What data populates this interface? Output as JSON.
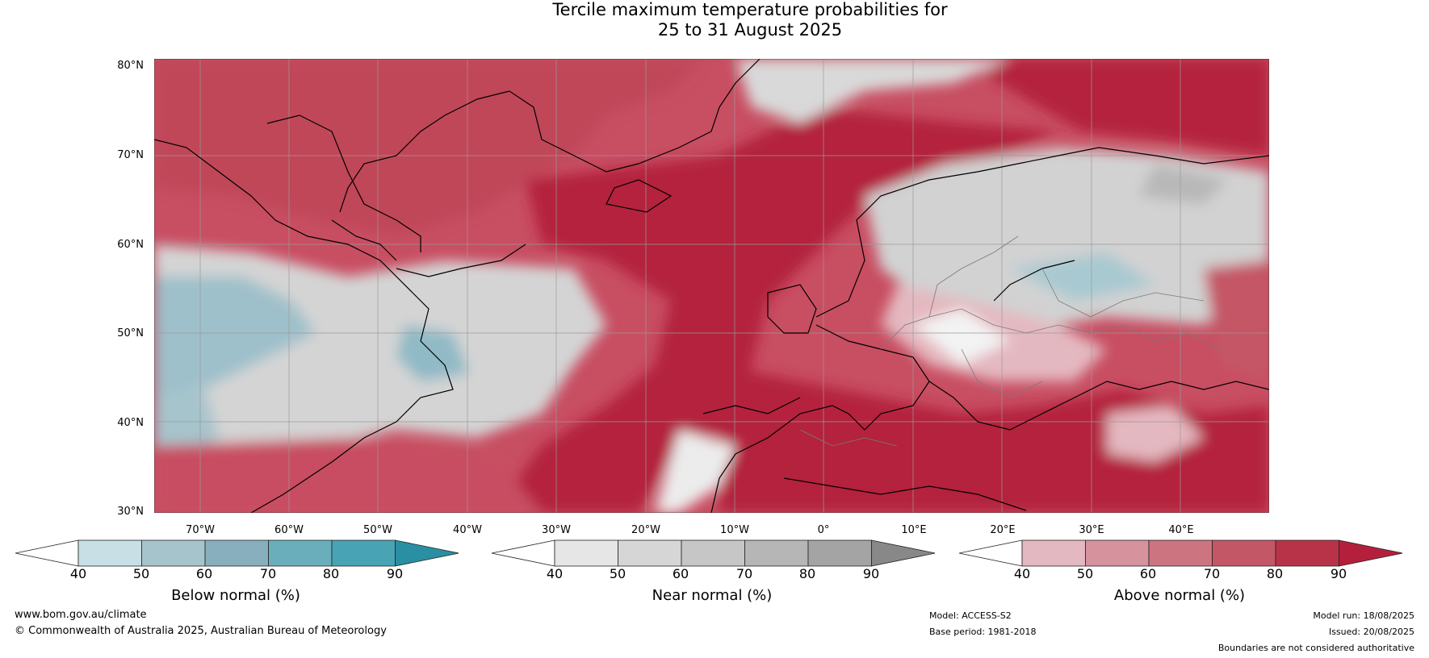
{
  "title": {
    "line1": "Tercile maximum temperature probabilities for",
    "line2": "25 to 31 August 2025"
  },
  "map": {
    "lat_labels": [
      "80°N",
      "70°N",
      "60°N",
      "50°N",
      "40°N",
      "30°N"
    ],
    "lon_labels": [
      "70°W",
      "60°W",
      "50°W",
      "40°W",
      "30°W",
      "20°W",
      "10°W",
      "0°",
      "10°E",
      "20°E",
      "30°E",
      "40°E"
    ]
  },
  "colorbars": [
    {
      "label": "Below normal (%)",
      "ticks": [
        "40",
        "50",
        "60",
        "70",
        "80",
        "90"
      ],
      "colors": [
        "#ffffff",
        "#c8dfe6",
        "#a6c4cc",
        "#88afbd",
        "#6aaebc",
        "#48a3b5",
        "#2a8fa2"
      ]
    },
    {
      "label": "Near normal (%)",
      "ticks": [
        "40",
        "50",
        "60",
        "70",
        "80",
        "90"
      ],
      "colors": [
        "#ffffff",
        "#e6e6e6",
        "#d6d6d6",
        "#c6c6c6",
        "#b6b6b6",
        "#a4a4a4",
        "#888888"
      ]
    },
    {
      "label": "Above normal (%)",
      "ticks": [
        "40",
        "50",
        "60",
        "70",
        "80",
        "90"
      ],
      "colors": [
        "#ffffff",
        "#e4b8c0",
        "#d6929d",
        "#cc7581",
        "#c45766",
        "#b83347",
        "#b4203c"
      ]
    }
  ],
  "footer": {
    "website": "www.bom.gov.au/climate",
    "copyright": "© Commonwealth of Australia 2025, Australian Bureau of Meteorology",
    "model": "Model: ACCESS-S2",
    "base_period": "Base period: 1981-2018",
    "model_run": "Model run: 18/08/2025",
    "issued": "Issued: 20/08/2025",
    "disclaimer": "Boundaries are not considered authoritative"
  }
}
